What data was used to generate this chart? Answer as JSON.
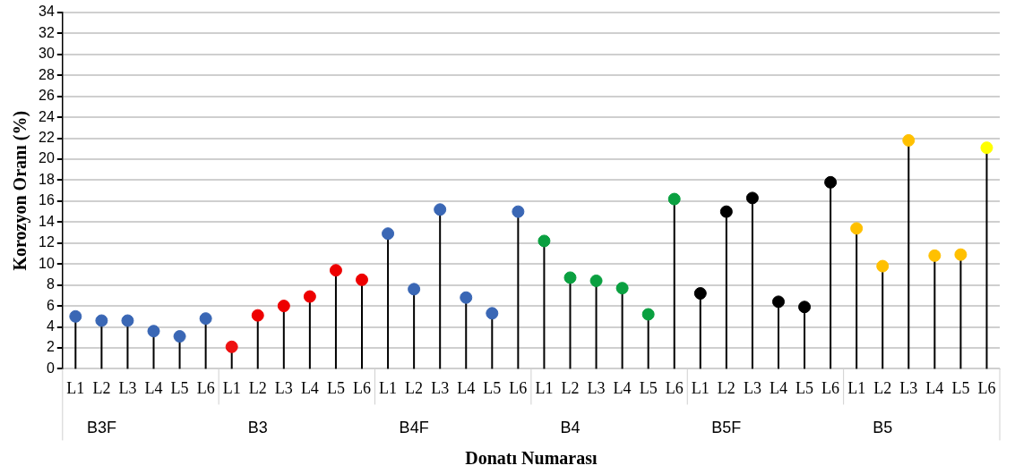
{
  "chart_data": {
    "type": "lollipop",
    "xlabel": "Donatı Numarası",
    "ylabel": "Korozyon Oranı (%)",
    "categories": [
      "L1",
      "L2",
      "L3",
      "L4",
      "L5",
      "L6",
      "L1",
      "L2",
      "L3",
      "L4",
      "L5",
      "L6",
      "L1",
      "L2",
      "L3",
      "L4",
      "L5",
      "L6",
      "L1",
      "L2",
      "L3",
      "L4",
      "L5",
      "L6",
      "L1",
      "L2",
      "L3",
      "L4",
      "L5",
      "L6",
      "L1",
      "L2",
      "L3",
      "L4",
      "L5",
      "L6"
    ],
    "values": [
      5.0,
      4.6,
      4.6,
      3.6,
      3.1,
      4.8,
      2.1,
      5.1,
      6.0,
      6.9,
      9.4,
      8.5,
      12.9,
      7.6,
      15.2,
      6.8,
      5.3,
      15.0,
      12.2,
      8.7,
      8.4,
      7.7,
      5.2,
      16.2,
      7.2,
      15.0,
      16.3,
      6.4,
      5.9,
      17.8,
      13.4,
      9.8,
      21.8,
      10.8,
      10.9,
      21.1
    ],
    "colors": [
      "#3a67b5",
      "#3a67b5",
      "#3a67b5",
      "#3a67b5",
      "#3a67b5",
      "#3a67b5",
      "#ee1111",
      "#ee0000",
      "#ee0000",
      "#ee0000",
      "#ee0000",
      "#ee0000",
      "#3a67b5",
      "#3a67b5",
      "#3a67b5",
      "#3a67b5",
      "#3a67b5",
      "#3a67b5",
      "#0aa040",
      "#0aa040",
      "#0aa040",
      "#0aa040",
      "#0aa040",
      "#0aa040",
      "#000000",
      "#000000",
      "#000000",
      "#000000",
      "#000000",
      "#000000",
      "#ffc000",
      "#ffc000",
      "#ffc000",
      "#ffc000",
      "#ffc000",
      "#ffff00"
    ],
    "annotations": [
      "B3F",
      "B3",
      "B4F",
      "B4",
      "B5F",
      "B5"
    ],
    "ylim": [
      0,
      34
    ],
    "yticks": [
      0,
      2,
      4,
      6,
      8,
      10,
      12,
      14,
      16,
      18,
      20,
      22,
      24,
      26,
      28,
      30,
      32,
      34
    ],
    "grid": "y",
    "marker": "circle",
    "legend": false
  }
}
